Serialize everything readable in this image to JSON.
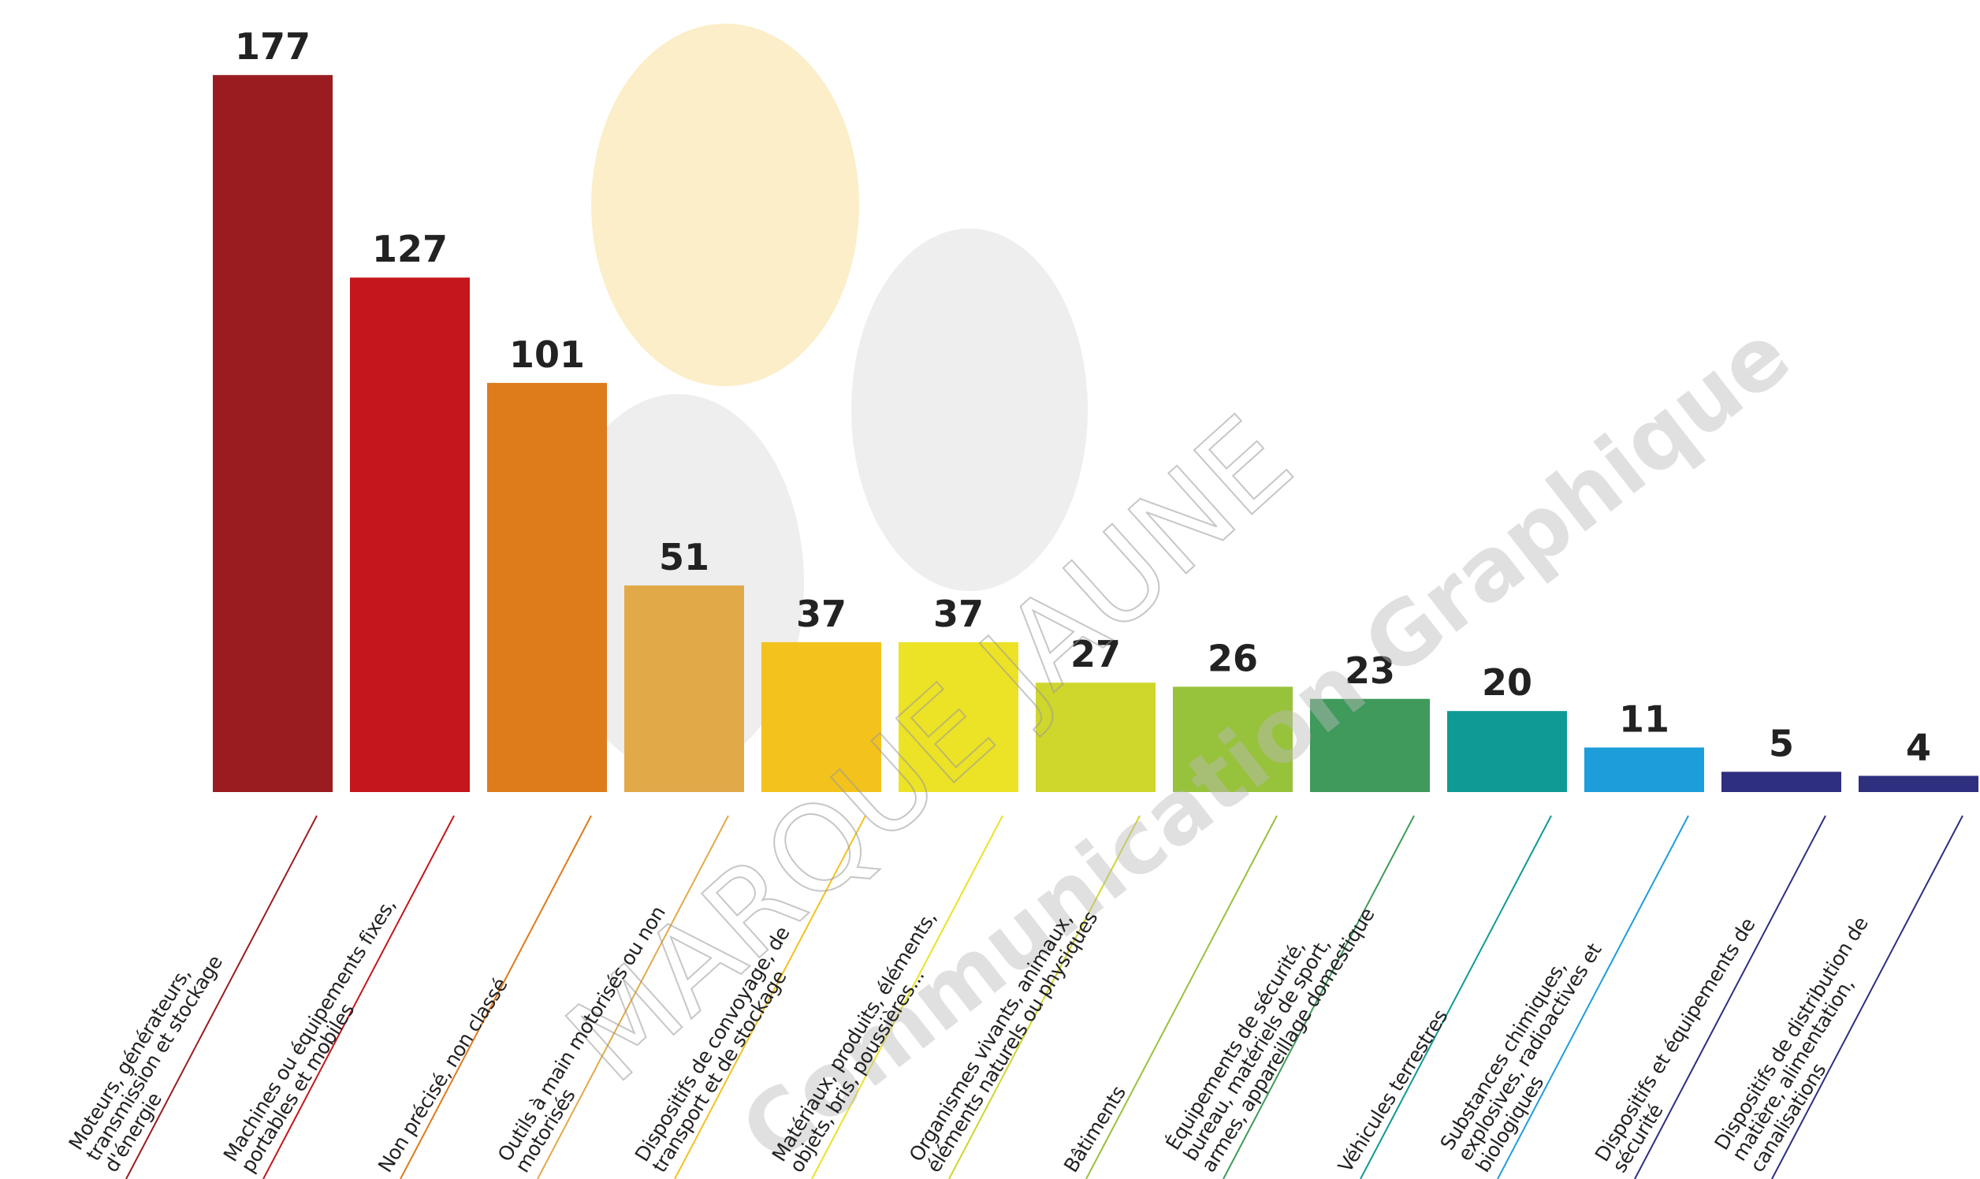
{
  "chart_data": {
    "type": "bar",
    "categories": [
      "Moteurs, générateurs, transmission et stockage d'énergie",
      "Machines ou équipements fixes, portables et mobiles",
      "Non précisé, non classé",
      "Outils à main motorisés ou non motorisés",
      "Dispositifs de convoyage, de transport et de stockage",
      "Matériaux, produits, éléments, objets, bris, poussières...",
      "Organismes vivants, animaux, éléments naturels ou physiques",
      "Bâtiments",
      "Équipements de sécurité, bureau, matériels de sport, armes, appareillage domestique",
      "Véhicules terrestres",
      "Substances chimiques, explosives, radioactives et biologiques",
      "Dispositifs et équipements de sécurité",
      "Dispositifs de distribution de matière, alimentation, canalisations"
    ],
    "values": [
      177,
      127,
      101,
      51,
      37,
      37,
      27,
      26,
      23,
      20,
      11,
      5,
      4
    ],
    "colors": [
      "#9b1c20",
      "#c4161c",
      "#de7b1b",
      "#e2a949",
      "#f3c21c",
      "#ece226",
      "#cfd62c",
      "#97c23b",
      "#3f9a5b",
      "#0f9a95",
      "#1e9ddb",
      "#2e2f7f",
      "#2e2f7f"
    ],
    "watermark": [
      "MARQUE JAUNE",
      "Communication Graphique"
    ]
  }
}
